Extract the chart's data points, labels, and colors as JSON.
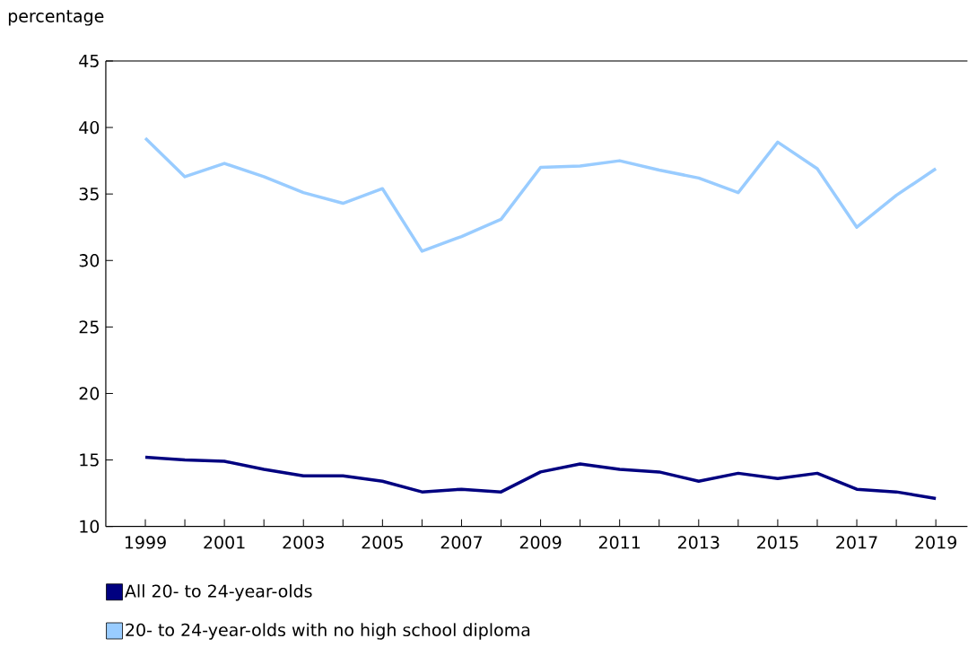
{
  "chart_data": {
    "type": "line",
    "ylabel": "percentage",
    "x": [
      1999,
      2000,
      2001,
      2002,
      2003,
      2004,
      2005,
      2006,
      2007,
      2008,
      2009,
      2010,
      2011,
      2012,
      2013,
      2014,
      2015,
      2016,
      2017,
      2018,
      2019
    ],
    "series": [
      {
        "name": "All 20- to 24-year-olds",
        "color": "#000080",
        "values": [
          15.2,
          15.0,
          14.9,
          14.3,
          13.8,
          13.8,
          13.4,
          12.6,
          12.8,
          12.6,
          14.1,
          14.7,
          14.3,
          14.1,
          13.4,
          14.0,
          13.6,
          14.0,
          12.8,
          12.6,
          12.1
        ]
      },
      {
        "name": "20- to 24-year-olds with no high school diploma",
        "color": "#99ccff",
        "values": [
          39.2,
          36.3,
          37.3,
          36.3,
          35.1,
          34.3,
          35.4,
          30.7,
          31.8,
          33.1,
          37.0,
          37.1,
          37.5,
          36.8,
          36.2,
          35.1,
          38.9,
          36.9,
          32.5,
          34.9,
          36.9
        ]
      }
    ],
    "xlim": [
      1998,
      2019.8
    ],
    "xticks": [
      1999,
      {
        "value": 2000,
        "label": null
      },
      2001,
      {
        "value": 2002,
        "label": null
      },
      2003,
      {
        "value": 2004,
        "label": null
      },
      2005,
      {
        "value": 2006,
        "label": null
      },
      2007,
      {
        "value": 2008,
        "label": null
      },
      2009,
      {
        "value": 2010,
        "label": null
      },
      2011,
      {
        "value": 2012,
        "label": null
      },
      2013,
      {
        "value": 2014,
        "label": null
      },
      2015,
      {
        "value": 2016,
        "label": null
      },
      2017,
      {
        "value": 2018,
        "label": null
      },
      2019
    ],
    "ylim": [
      10,
      45
    ],
    "yticks": [
      10,
      15,
      20,
      25,
      30,
      35,
      40,
      45
    ],
    "legend": "bottom",
    "marker": "none",
    "line_style": "solid"
  }
}
